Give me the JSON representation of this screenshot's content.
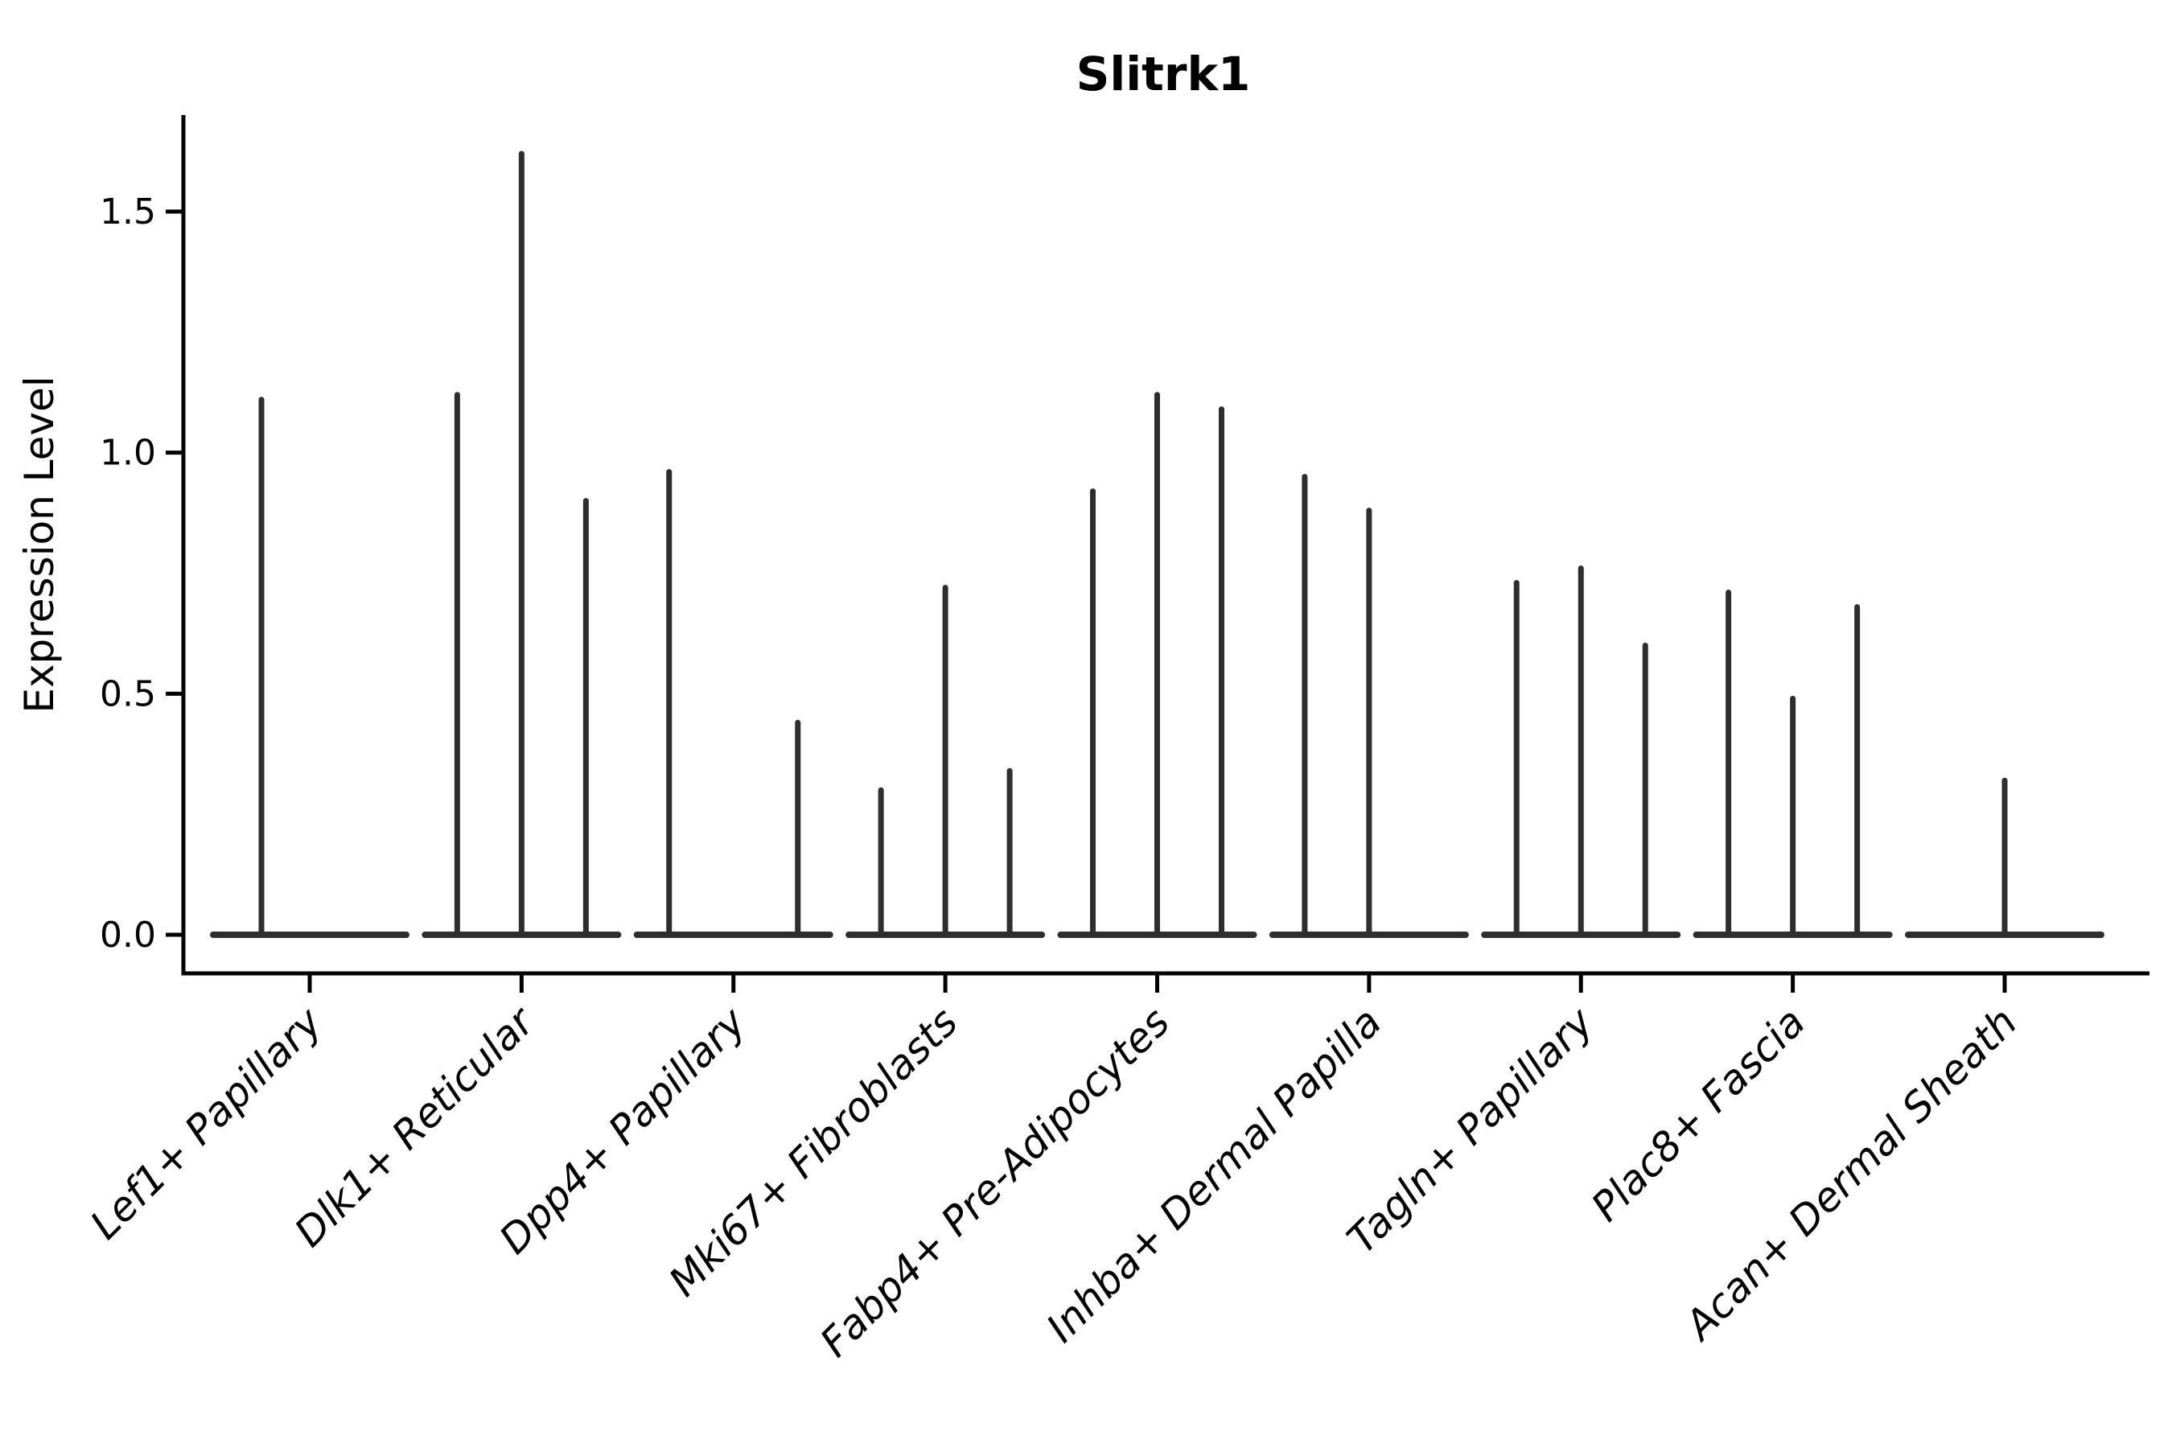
{
  "chart_data": {
    "type": "violin",
    "title": "Slitrk1",
    "ylabel": "Expression Level",
    "xlabel": "",
    "ytick_labels": [
      "0.0",
      "0.5",
      "1.0",
      "1.5"
    ],
    "ylim": [
      -0.08,
      1.7
    ],
    "grid": false,
    "legend": null,
    "x_tick_rotation_deg": 45,
    "violin_style": "collapsed spikes: expression mass at 0 with thin tails up to the listed maxima",
    "categories": [
      "Lef1+ Papillary",
      "Dlk1+ Reticular",
      "Dpp4+ Papillary",
      "Mki67+ Fibroblasts",
      "Fabp4+ Pre-Adipocytes",
      "Inhba+ Dermal Papilla",
      "Tagln+ Papillary",
      "Plac8+ Fascia",
      "Acan+ Dermal Sheath"
    ],
    "series": [
      {
        "category": "Lef1+ Papillary",
        "violin_maxima": [
          1.11,
          0
        ]
      },
      {
        "category": "Dlk1+ Reticular",
        "violin_maxima": [
          1.12,
          1.62,
          0.9
        ]
      },
      {
        "category": "Dpp4+ Papillary",
        "violin_maxima": [
          0.96,
          0,
          0.44
        ]
      },
      {
        "category": "Mki67+ Fibroblasts",
        "violin_maxima": [
          0.3,
          0.72,
          0.34
        ]
      },
      {
        "category": "Fabp4+ Pre-Adipocytes",
        "violin_maxima": [
          0.92,
          1.12,
          1.09
        ]
      },
      {
        "category": "Inhba+ Dermal Papilla",
        "violin_maxima": [
          0.95,
          0.88,
          0
        ]
      },
      {
        "category": "Tagln+ Papillary",
        "violin_maxima": [
          0.73,
          0.76,
          0.6
        ]
      },
      {
        "category": "Plac8+ Fascia",
        "violin_maxima": [
          0.71,
          0.49,
          0.68
        ]
      },
      {
        "category": "Acan+ Dermal Sheath",
        "violin_maxima": [
          0.32
        ]
      }
    ],
    "colors": {
      "marks": "#2e2e2e",
      "spine": "#000000",
      "text": "#000000",
      "background": "#ffffff"
    }
  }
}
